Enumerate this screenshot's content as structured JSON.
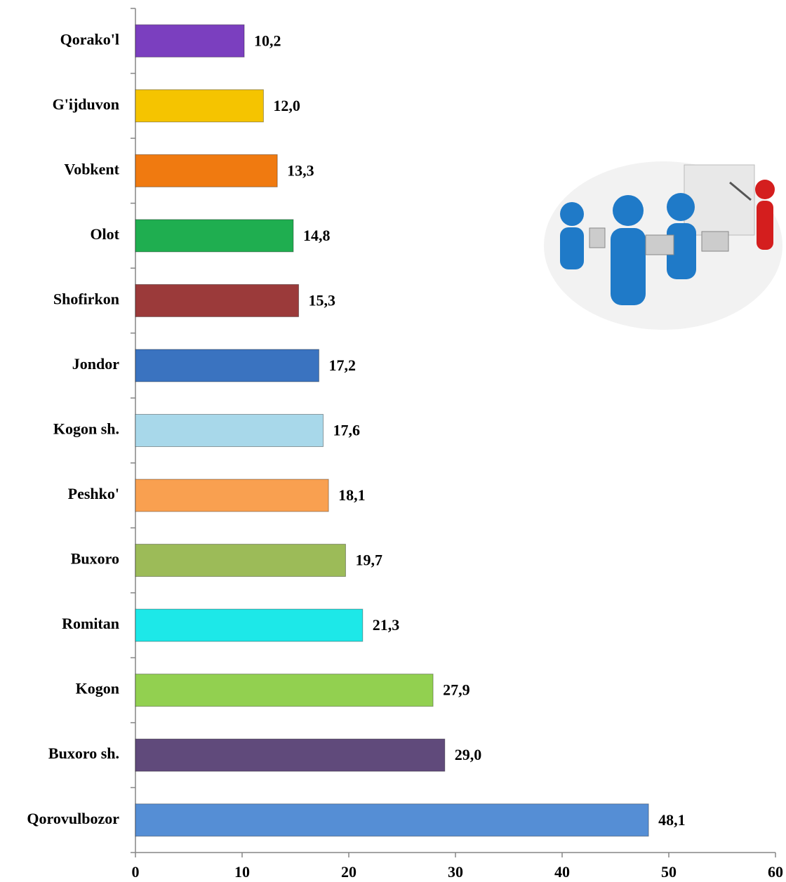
{
  "chart_data": {
    "type": "barh",
    "categories": [
      "Qorako'l",
      "G'ijduvon",
      "Vobkent",
      "Olot",
      "Shofirkon",
      "Jondor",
      "Kogon sh.",
      "Peshko'",
      "Buxoro",
      "Romitan",
      "Kogon",
      "Buxoro sh.",
      "Qorovulbozor"
    ],
    "values": [
      10.2,
      12.0,
      13.3,
      14.8,
      15.3,
      17.2,
      17.6,
      18.1,
      19.7,
      21.3,
      27.9,
      29.0,
      48.1
    ],
    "value_labels": [
      "10,2",
      "12,0",
      "13,3",
      "14,8",
      "15,3",
      "17,2",
      "17,6",
      "18,1",
      "19,7",
      "21,3",
      "27,9",
      "29,0",
      "48,1"
    ],
    "colors": [
      "#7b3fbf",
      "#f5c400",
      "#f07a10",
      "#1fae50",
      "#9b3a3a",
      "#3a73c0",
      "#a8d8ea",
      "#f9a050",
      "#9cbb58",
      "#1de8e8",
      "#92d050",
      "#604a7b",
      "#558ed5"
    ],
    "xlim": [
      0,
      60
    ],
    "xticks": [
      0,
      10,
      20,
      30,
      40,
      50,
      60
    ]
  }
}
